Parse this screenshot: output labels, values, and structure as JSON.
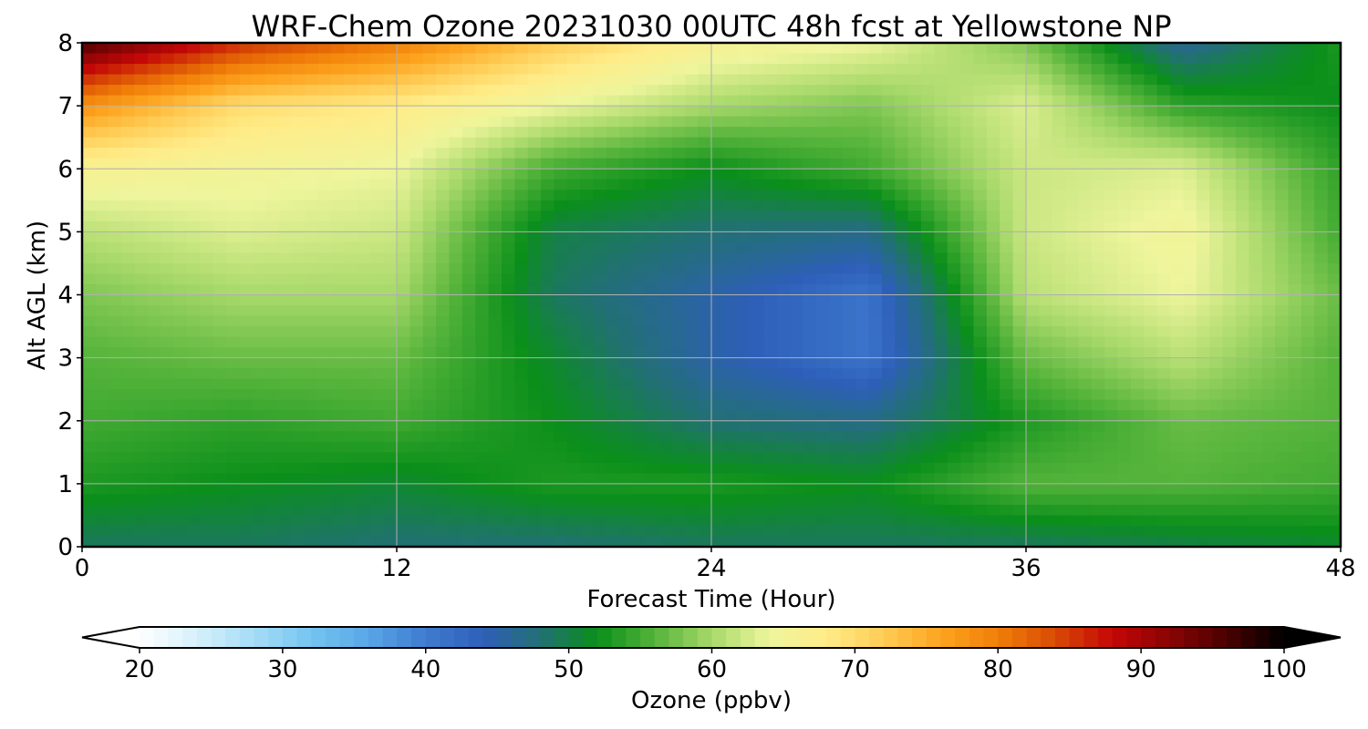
{
  "chart_data": {
    "type": "heatmap",
    "title": "WRF-Chem Ozone  20231030 00UTC 48h fcst at Yellowstone NP",
    "xlabel": "Forecast Time (Hour)",
    "ylabel": "Alt AGL (km)",
    "xlim": [
      0,
      48
    ],
    "ylim": [
      0,
      8
    ],
    "xticks": [
      0,
      12,
      24,
      36,
      48
    ],
    "yticks": [
      0,
      1,
      2,
      3,
      4,
      5,
      6,
      7,
      8
    ],
    "grid": true,
    "colorbar": {
      "label": "Ozone  (ppbv)",
      "min": 20,
      "max": 100,
      "ticks": [
        20,
        30,
        40,
        50,
        60,
        70,
        80,
        90,
        100
      ],
      "extend": "both",
      "colors": [
        "#ffffff",
        "#d6f0fb",
        "#a5dcf6",
        "#74c5f1",
        "#58a6e6",
        "#3f7bd0",
        "#2e5fb8",
        "#227075",
        "#0a8f1a",
        "#54b33a",
        "#a8d96a",
        "#eef59c",
        "#ffec88",
        "#ffcc55",
        "#fda41f",
        "#f07e08",
        "#d84a05",
        "#c40707",
        "#8a0404",
        "#4a0101",
        "#000000"
      ]
    },
    "x": [
      0,
      6,
      12,
      18,
      24,
      30,
      36,
      42,
      48
    ],
    "y": [
      0,
      1,
      2,
      3,
      4,
      5,
      6,
      7,
      8
    ],
    "values": [
      [
        49,
        49,
        48,
        48,
        49,
        49,
        49,
        50,
        51
      ],
      [
        53,
        52,
        51,
        53,
        53,
        52,
        56,
        56,
        55
      ],
      [
        55,
        54,
        55,
        52,
        48,
        47,
        53,
        57,
        56
      ],
      [
        56,
        57,
        57,
        51,
        45,
        41,
        57,
        61,
        56
      ],
      [
        58,
        60,
        60,
        49,
        45,
        41,
        61,
        64,
        57
      ],
      [
        61,
        63,
        62,
        50,
        48,
        47,
        62,
        65,
        55
      ],
      [
        66,
        65,
        64,
        55,
        52,
        55,
        62,
        63,
        54
      ],
      [
        78,
        70,
        68,
        64,
        60,
        58,
        63,
        54,
        52
      ],
      [
        96,
        86,
        80,
        72,
        66,
        64,
        58,
        46,
        53
      ]
    ]
  }
}
